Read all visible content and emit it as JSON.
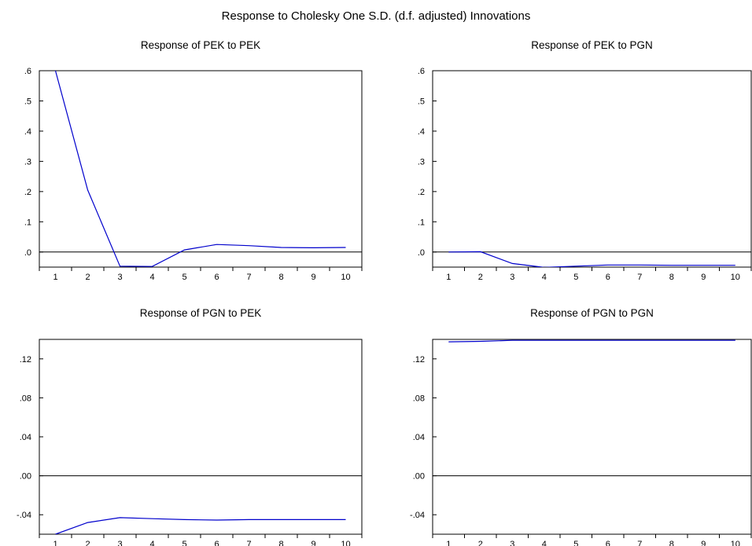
{
  "figure": {
    "title": "Response to Cholesky One S.D. (d.f. adjusted) Innovations"
  },
  "colors": {
    "line": "#0000cc",
    "zero_line": "#000000",
    "frame": "#000000",
    "background": "#ffffff"
  },
  "chart_data": [
    {
      "type": "line",
      "title": "Response of PEK to PEK",
      "xlabel": "",
      "ylabel": "",
      "x": [
        1,
        2,
        3,
        4,
        5,
        6,
        7,
        8,
        9,
        10
      ],
      "x_tick_labels": [
        "1",
        "2",
        "3",
        "4",
        "5",
        "6",
        "7",
        "8",
        "9",
        "10"
      ],
      "y_tick_values": [
        0.0,
        0.1,
        0.2,
        0.3,
        0.4,
        0.5,
        0.6
      ],
      "y_tick_labels": [
        ".0",
        ".1",
        ".2",
        ".3",
        ".4",
        ".5",
        ".6"
      ],
      "ylim": [
        -0.05,
        0.6
      ],
      "zero_line": true,
      "grid": false,
      "series": [
        {
          "values": [
            0.6,
            0.205,
            -0.047,
            -0.048,
            0.007,
            0.025,
            0.021,
            0.015,
            0.014,
            0.015
          ]
        }
      ]
    },
    {
      "type": "line",
      "title": "Response of PEK to PGN",
      "xlabel": "",
      "ylabel": "",
      "x": [
        1,
        2,
        3,
        4,
        5,
        6,
        7,
        8,
        9,
        10
      ],
      "x_tick_labels": [
        "1",
        "2",
        "3",
        "4",
        "5",
        "6",
        "7",
        "8",
        "9",
        "10"
      ],
      "y_tick_values": [
        0.0,
        0.1,
        0.2,
        0.3,
        0.4,
        0.5,
        0.6
      ],
      "y_tick_labels": [
        ".0",
        ".1",
        ".2",
        ".3",
        ".4",
        ".5",
        ".6"
      ],
      "ylim": [
        -0.05,
        0.6
      ],
      "zero_line": true,
      "grid": false,
      "series": [
        {
          "values": [
            0.0,
            0.001,
            -0.038,
            -0.051,
            -0.047,
            -0.043,
            -0.043,
            -0.044,
            -0.044,
            -0.044
          ]
        }
      ]
    },
    {
      "type": "line",
      "title": "Response of PGN to PEK",
      "xlabel": "",
      "ylabel": "",
      "x": [
        1,
        2,
        3,
        4,
        5,
        6,
        7,
        8,
        9,
        10
      ],
      "x_tick_labels": [
        "1",
        "2",
        "3",
        "4",
        "5",
        "6",
        "7",
        "8",
        "9",
        "10"
      ],
      "y_tick_values": [
        -0.04,
        0.0,
        0.04,
        0.08,
        0.12
      ],
      "y_tick_labels": [
        "-.04",
        ".00",
        ".04",
        ".08",
        ".12"
      ],
      "ylim": [
        -0.06,
        0.14
      ],
      "zero_line": true,
      "grid": false,
      "series": [
        {
          "values": [
            -0.06,
            -0.048,
            -0.043,
            -0.044,
            -0.045,
            -0.0455,
            -0.045,
            -0.045,
            -0.045,
            -0.045
          ]
        }
      ]
    },
    {
      "type": "line",
      "title": "Response of PGN to PGN",
      "xlabel": "",
      "ylabel": "",
      "x": [
        1,
        2,
        3,
        4,
        5,
        6,
        7,
        8,
        9,
        10
      ],
      "x_tick_labels": [
        "1",
        "2",
        "3",
        "4",
        "5",
        "6",
        "7",
        "8",
        "9",
        "10"
      ],
      "y_tick_values": [
        -0.04,
        0.0,
        0.04,
        0.08,
        0.12
      ],
      "y_tick_labels": [
        "-.04",
        ".00",
        ".04",
        ".08",
        ".12"
      ],
      "ylim": [
        -0.06,
        0.14
      ],
      "zero_line": true,
      "grid": false,
      "series": [
        {
          "values": [
            0.1375,
            0.138,
            0.139,
            0.139,
            0.139,
            0.139,
            0.139,
            0.139,
            0.139,
            0.139
          ]
        }
      ]
    }
  ]
}
